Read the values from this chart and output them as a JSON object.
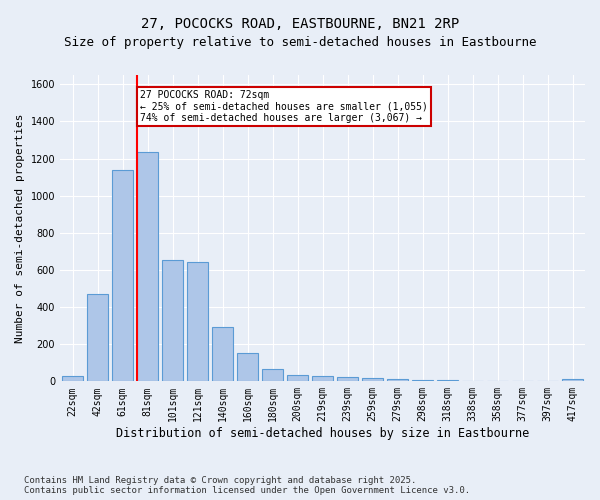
{
  "title_line1": "27, POCOCKS ROAD, EASTBOURNE, BN21 2RP",
  "title_line2": "Size of property relative to semi-detached houses in Eastbourne",
  "xlabel": "Distribution of semi-detached houses by size in Eastbourne",
  "ylabel": "Number of semi-detached properties",
  "bar_labels": [
    "22sqm",
    "42sqm",
    "61sqm",
    "81sqm",
    "101sqm",
    "121sqm",
    "140sqm",
    "160sqm",
    "180sqm",
    "200sqm",
    "219sqm",
    "239sqm",
    "259sqm",
    "279sqm",
    "298sqm",
    "318sqm",
    "338sqm",
    "358sqm",
    "377sqm",
    "397sqm",
    "417sqm"
  ],
  "bar_values": [
    28,
    470,
    1140,
    1235,
    655,
    645,
    295,
    155,
    65,
    35,
    28,
    22,
    18,
    12,
    8,
    6,
    3,
    3,
    2,
    3,
    10
  ],
  "bar_color": "#aec6e8",
  "bar_edge_color": "#5b9bd5",
  "annotation_line1": "27 POCOCKS ROAD: 72sqm",
  "annotation_line2": "← 25% of semi-detached houses are smaller (1,055)",
  "annotation_line3": "74% of semi-detached houses are larger (3,067) →",
  "annotation_box_color": "#ffffff",
  "annotation_box_edge": "#cc0000",
  "ylim": [
    0,
    1650
  ],
  "yticks": [
    0,
    200,
    400,
    600,
    800,
    1000,
    1200,
    1400,
    1600
  ],
  "footnote": "Contains HM Land Registry data © Crown copyright and database right 2025.\nContains public sector information licensed under the Open Government Licence v3.0.",
  "background_color": "#e8eef7",
  "plot_bg_color": "#e8eef7",
  "grid_color": "#ffffff",
  "title_fontsize": 10,
  "subtitle_fontsize": 9,
  "tick_fontsize": 7,
  "ylabel_fontsize": 8,
  "xlabel_fontsize": 8.5,
  "footnote_fontsize": 6.5
}
